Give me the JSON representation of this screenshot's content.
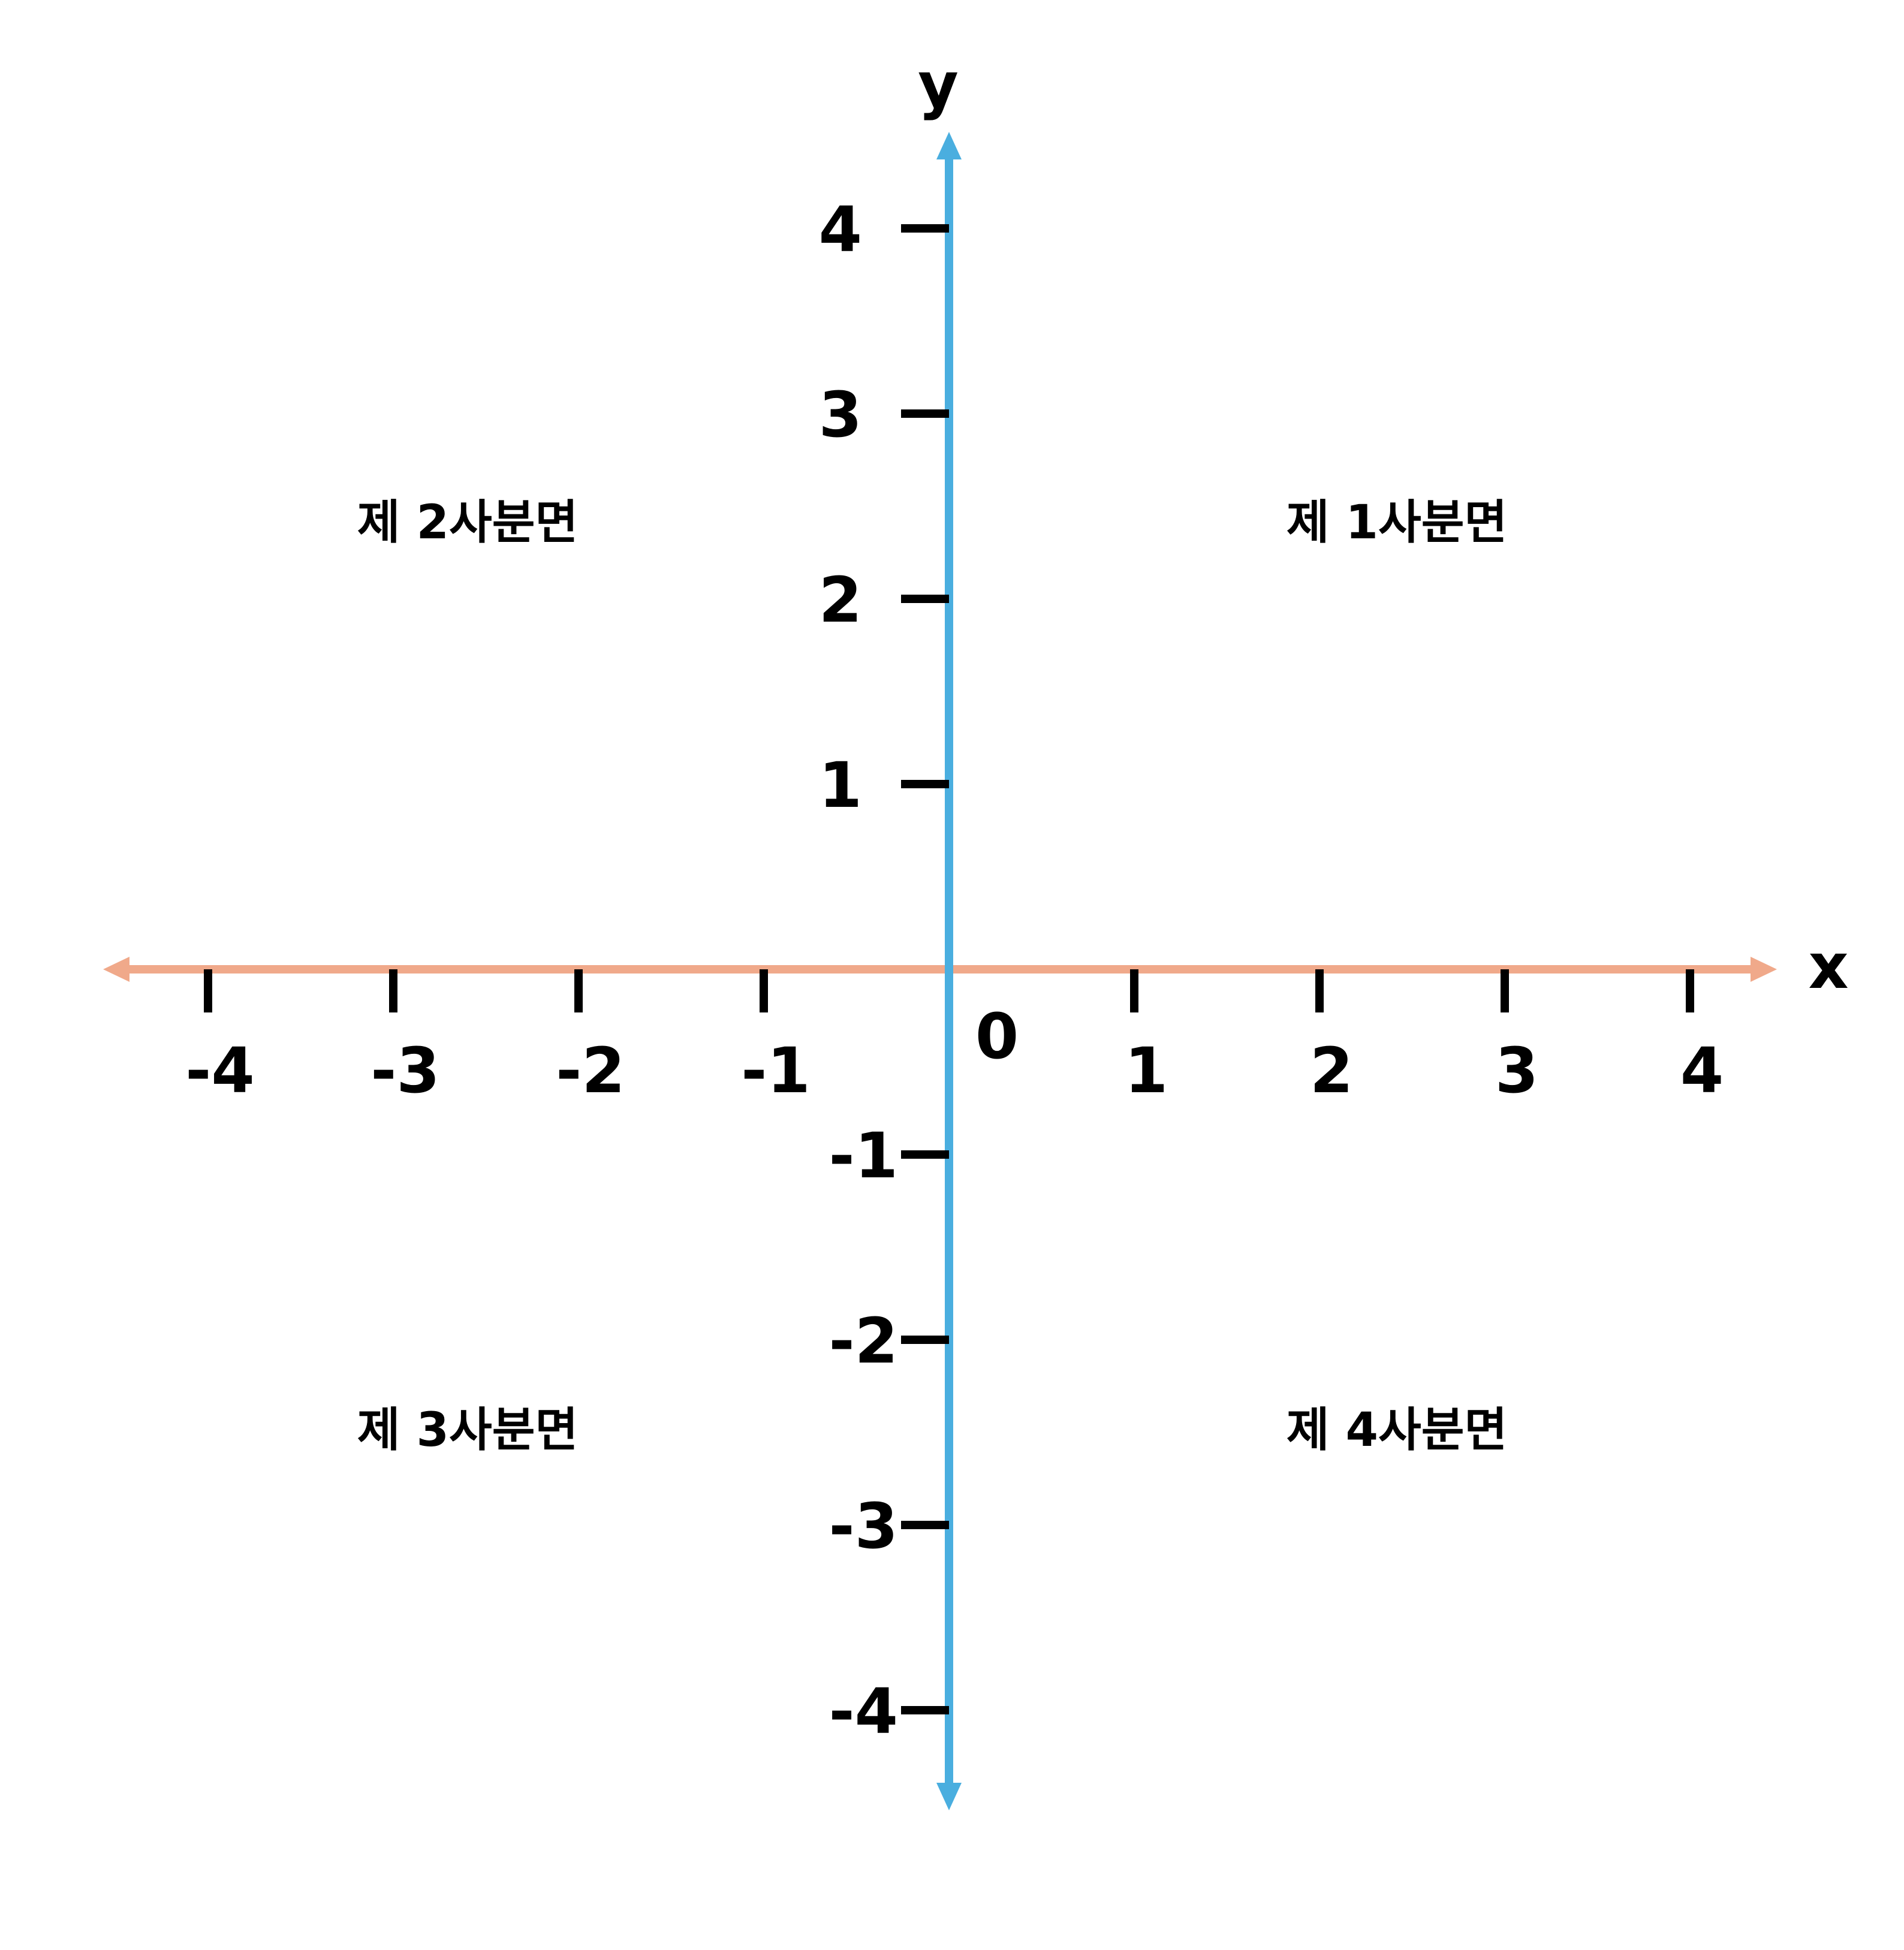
{
  "axes": {
    "x_name": "x",
    "y_name": "y",
    "origin": "0",
    "x_color": "#F0A98A",
    "y_color": "#4AAEDF",
    "tick_color": "#000000"
  },
  "x_ticks": [
    {
      "value": -4,
      "label": "-4"
    },
    {
      "value": -3,
      "label": "-3"
    },
    {
      "value": -2,
      "label": "-2"
    },
    {
      "value": -1,
      "label": "-1"
    },
    {
      "value": 1,
      "label": "1"
    },
    {
      "value": 2,
      "label": "2"
    },
    {
      "value": 3,
      "label": "3"
    },
    {
      "value": 4,
      "label": "4"
    }
  ],
  "y_ticks": [
    {
      "value": 4,
      "label": "4"
    },
    {
      "value": 3,
      "label": "3"
    },
    {
      "value": 2,
      "label": "2"
    },
    {
      "value": 1,
      "label": "1"
    },
    {
      "value": -1,
      "label": "-1"
    },
    {
      "value": -2,
      "label": "-2"
    },
    {
      "value": -3,
      "label": "-3"
    },
    {
      "value": -4,
      "label": "-4"
    }
  ],
  "quadrants": [
    {
      "id": "q1",
      "label": "제 1사분면"
    },
    {
      "id": "q2",
      "label": "제 2사분면"
    },
    {
      "id": "q3",
      "label": "제 3사분면"
    },
    {
      "id": "q4",
      "label": "제 4사분면"
    }
  ]
}
